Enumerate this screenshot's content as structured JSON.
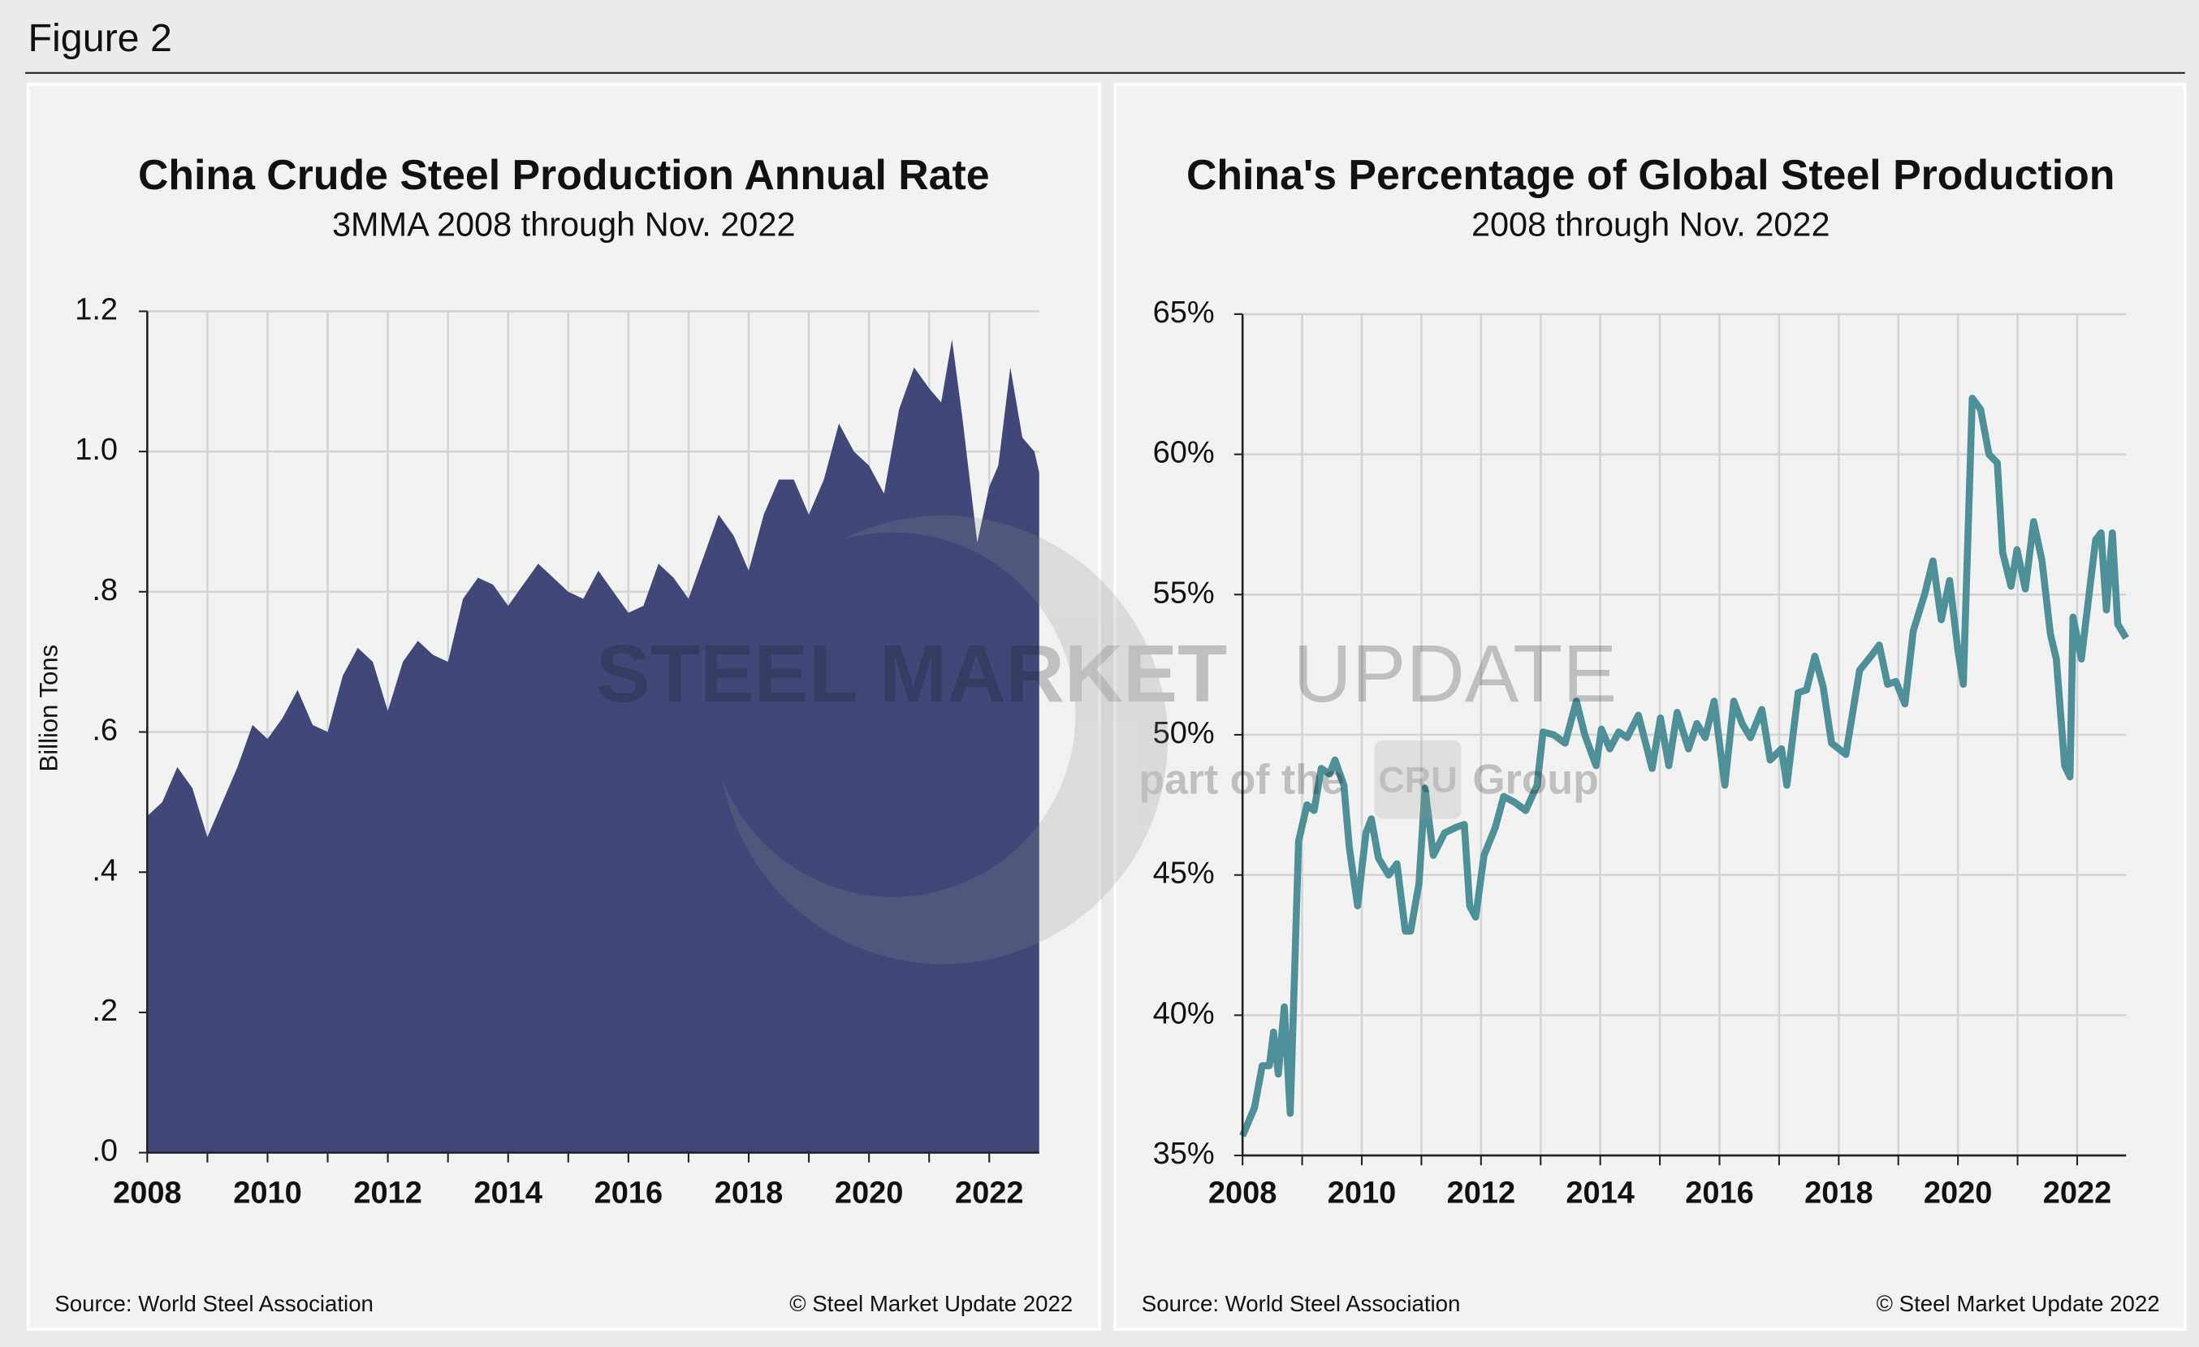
{
  "figure_label": "Figure 2",
  "watermark": {
    "brand_bold": "STEEL MARKET",
    "brand_light": "UPDATE",
    "part_of": "part of the",
    "group_logo": "CRU",
    "group": "Group"
  },
  "chart_data": [
    {
      "type": "area",
      "title": "China Crude Steel Production Annual Rate",
      "subtitle": "3MMA 2008 through Nov. 2022",
      "y_label": "Billion Tons",
      "source": "Source: World Steel Association",
      "copyright": "© Steel Market Update 2022",
      "color": "#414879",
      "x": [
        2008.0,
        2008.25,
        2008.5,
        2008.75,
        2009.0,
        2009.25,
        2009.5,
        2009.75,
        2010.0,
        2010.25,
        2010.5,
        2010.75,
        2011.0,
        2011.25,
        2011.5,
        2011.75,
        2012.0,
        2012.25,
        2012.5,
        2012.75,
        2013.0,
        2013.25,
        2013.5,
        2013.75,
        2014.0,
        2014.25,
        2014.5,
        2014.75,
        2015.0,
        2015.25,
        2015.5,
        2015.75,
        2016.0,
        2016.25,
        2016.5,
        2016.75,
        2017.0,
        2017.25,
        2017.5,
        2017.75,
        2018.0,
        2018.25,
        2018.5,
        2018.75,
        2019.0,
        2019.25,
        2019.5,
        2019.75,
        2020.0,
        2020.25,
        2020.5,
        2020.75,
        2021.0,
        2021.2,
        2021.38,
        2021.55,
        2021.8,
        2022.0,
        2022.15,
        2022.35,
        2022.55,
        2022.75,
        2022.83
      ],
      "values": [
        0.48,
        0.5,
        0.55,
        0.52,
        0.45,
        0.5,
        0.55,
        0.61,
        0.59,
        0.62,
        0.66,
        0.61,
        0.6,
        0.68,
        0.72,
        0.7,
        0.63,
        0.7,
        0.73,
        0.71,
        0.7,
        0.79,
        0.82,
        0.81,
        0.78,
        0.81,
        0.84,
        0.82,
        0.8,
        0.79,
        0.83,
        0.8,
        0.77,
        0.78,
        0.84,
        0.82,
        0.79,
        0.85,
        0.91,
        0.88,
        0.83,
        0.91,
        0.96,
        0.96,
        0.91,
        0.96,
        1.04,
        1.0,
        0.98,
        0.94,
        1.06,
        1.12,
        1.09,
        1.07,
        1.16,
        1.05,
        0.87,
        0.95,
        0.98,
        1.12,
        1.02,
        1.0,
        0.97
      ],
      "xlim": [
        2008,
        2022.83
      ],
      "xticks": [
        2008,
        2010,
        2012,
        2014,
        2016,
        2018,
        2020,
        2022
      ],
      "minor_xticks": [
        2009,
        2011,
        2013,
        2015,
        2017,
        2019,
        2021
      ],
      "ylim": [
        0,
        1.2
      ],
      "yticks": [
        {
          "value": 0,
          "label": ".0"
        },
        {
          "value": 0.2,
          "label": ".2"
        },
        {
          "value": 0.4,
          "label": ".4"
        },
        {
          "value": 0.6,
          "label": ".6"
        },
        {
          "value": 0.8,
          "label": ".8"
        },
        {
          "value": 1,
          "label": "1.0"
        },
        1.2
      ],
      "grid": true
    },
    {
      "type": "line",
      "title": "China's Percentage of Global Steel Production",
      "subtitle": "2008 through Nov. 2022",
      "source": "Source: World Steel Association",
      "copyright": "© Steel Market Update 2022",
      "color": "#4e9097",
      "x": [
        2008.0,
        2008.2,
        2008.33,
        2008.45,
        2008.52,
        2008.6,
        2008.7,
        2008.8,
        2008.94,
        2009.08,
        2009.2,
        2009.32,
        2009.46,
        2009.55,
        2009.7,
        2009.79,
        2009.93,
        2010.07,
        2010.16,
        2010.28,
        2010.45,
        2010.59,
        2010.73,
        2010.82,
        2010.96,
        2011.06,
        2011.2,
        2011.39,
        2011.58,
        2011.72,
        2011.81,
        2011.91,
        2012.05,
        2012.24,
        2012.38,
        2012.56,
        2012.75,
        2012.94,
        2013.04,
        2013.22,
        2013.41,
        2013.6,
        2013.74,
        2013.93,
        2014.02,
        2014.16,
        2014.31,
        2014.45,
        2014.64,
        2014.87,
        2015.01,
        2015.15,
        2015.29,
        2015.48,
        2015.62,
        2015.76,
        2015.91,
        2016.09,
        2016.24,
        2016.38,
        2016.52,
        2016.71,
        2016.85,
        2017.04,
        2017.13,
        2017.32,
        2017.46,
        2017.6,
        2017.74,
        2017.88,
        2018.12,
        2018.35,
        2018.54,
        2018.68,
        2018.82,
        2018.96,
        2019.11,
        2019.25,
        2019.44,
        2019.58,
        2019.72,
        2019.86,
        2020.0,
        2020.09,
        2020.24,
        2020.38,
        2020.52,
        2020.66,
        2020.75,
        2020.89,
        2020.99,
        2021.13,
        2021.27,
        2021.41,
        2021.55,
        2021.65,
        2021.79,
        2021.88,
        2021.93,
        2022.07,
        2022.21,
        2022.31,
        2022.4,
        2022.49,
        2022.59,
        2022.68,
        2022.82
      ],
      "values": [
        35.7,
        36.7,
        38.2,
        38.2,
        39.4,
        37.9,
        40.3,
        36.5,
        46.2,
        47.5,
        47.3,
        48.8,
        48.6,
        49.1,
        48.2,
        46,
        43.9,
        46.5,
        47,
        45.6,
        45,
        45.4,
        43,
        43,
        44.7,
        48.1,
        45.7,
        46.5,
        46.7,
        46.8,
        43.9,
        43.5,
        45.7,
        46.7,
        47.8,
        47.6,
        47.3,
        48.2,
        50.1,
        50,
        49.7,
        51.2,
        50,
        48.9,
        50.2,
        49.5,
        50.1,
        49.9,
        50.7,
        48.8,
        50.6,
        48.9,
        50.8,
        49.5,
        50.4,
        49.9,
        51.2,
        48.2,
        51.2,
        50.4,
        49.9,
        50.9,
        49.1,
        49.5,
        48.2,
        51.5,
        51.6,
        52.8,
        51.7,
        49.7,
        49.3,
        52.3,
        52.8,
        53.2,
        51.8,
        51.9,
        51.1,
        53.7,
        55,
        56.2,
        54.1,
        55.5,
        53,
        51.8,
        62,
        61.6,
        60,
        59.7,
        56.5,
        55.3,
        56.6,
        55.2,
        57.6,
        56.2,
        53.6,
        52.7,
        48.9,
        48.5,
        54.2,
        52.7,
        55.2,
        56.95,
        57.2,
        54.45,
        57.2,
        53.95,
        53.45
      ],
      "xlim": [
        2008,
        2022.82
      ],
      "xticks": [
        2008,
        2010,
        2012,
        2014,
        2016,
        2018,
        2020,
        2022
      ],
      "minor_xticks": [
        2009,
        2011,
        2013,
        2015,
        2017,
        2019,
        2021
      ],
      "ylim": [
        35,
        65
      ],
      "yticks": [
        {
          "value": 35,
          "label": "35%"
        },
        {
          "value": 40,
          "label": "40%"
        },
        {
          "value": 45,
          "label": "45%"
        },
        {
          "value": 50,
          "label": "50%"
        },
        {
          "value": 55,
          "label": "55%"
        },
        {
          "value": 60,
          "label": "60%"
        },
        {
          "value": 65,
          "label": "65%"
        }
      ],
      "grid": true
    }
  ]
}
